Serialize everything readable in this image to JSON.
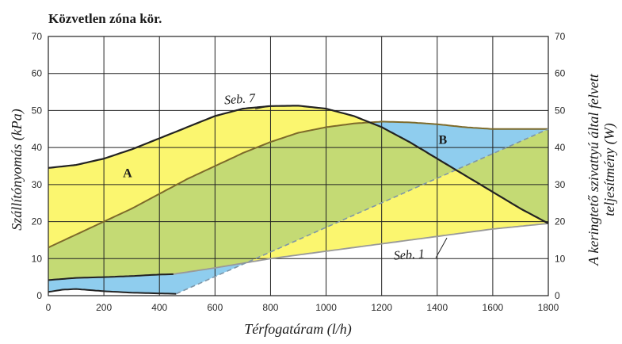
{
  "chart_data": {
    "type": "area",
    "title": "Közvetlen zóna kör.",
    "xlabel": "Térfogatáram (l/h)",
    "ylabel_left": "Szállítónyomás (kPa)",
    "ylabel_right_line1": "A keringtető szivattyú által felvett",
    "ylabel_right_line2": "teljesítmény (W)",
    "xlim": [
      0,
      1800
    ],
    "ylim": [
      0,
      70
    ],
    "y2lim": [
      0,
      70
    ],
    "grid": true,
    "x_ticks": [
      "0",
      "200",
      "400",
      "600",
      "800",
      "1000",
      "1200",
      "1400",
      "1600",
      "1800"
    ],
    "y_ticks": [
      "0",
      "10",
      "20",
      "30",
      "40",
      "50",
      "60",
      "70"
    ],
    "y2_ticks": [
      "0",
      "10",
      "20",
      "30",
      "40",
      "50",
      "60",
      "70"
    ],
    "colors": {
      "yellow": "#fbf66f",
      "green": "#c4da74",
      "blue": "#8fcdee",
      "curve_dark": "#222222",
      "curve_olive": "#7d6a2a",
      "curve_gray": "#999999",
      "dashed": "#7f96a8",
      "grid": "#222222"
    },
    "series": [
      {
        "name": "Seb. 7",
        "role": "pressure max",
        "x": [
          0,
          100,
          200,
          300,
          400,
          500,
          600,
          700,
          800,
          900,
          1000,
          1100,
          1200,
          1300,
          1400,
          1500,
          1600,
          1700,
          1800
        ],
        "values": [
          34.5,
          35.3,
          37,
          39.5,
          42.5,
          45.5,
          48.5,
          50.5,
          51.2,
          51.3,
          50.5,
          48.5,
          45.5,
          41.5,
          37,
          32.5,
          28,
          23.5,
          19.5
        ]
      },
      {
        "name": "",
        "role": "pressure min (boundary A)",
        "x": [
          0,
          100,
          200,
          300,
          400,
          450,
          600,
          800,
          1000,
          1200,
          1400,
          1600,
          1800
        ],
        "values": [
          4.2,
          4.8,
          5,
          5.3,
          5.7,
          5.8,
          7.5,
          10,
          12,
          14,
          16,
          18,
          19.5
        ]
      },
      {
        "name": "Seb. 1",
        "role": "pressure min",
        "x": [
          450,
          1800
        ],
        "values": [
          5.8,
          19.5
        ]
      },
      {
        "name": "",
        "role": "power max",
        "x": [
          0,
          100,
          200,
          300,
          400,
          500,
          600,
          700,
          800,
          900,
          1000,
          1100,
          1200,
          1300,
          1400,
          1500,
          1600,
          1700,
          1800
        ],
        "values": [
          13,
          16.5,
          20,
          23.5,
          27.5,
          31.5,
          35,
          38.5,
          41.5,
          44,
          45.5,
          46.5,
          47,
          46.8,
          46.3,
          45.5,
          45,
          45,
          45
        ]
      },
      {
        "name": "",
        "role": "power min",
        "x": [
          0,
          50,
          100,
          200,
          300,
          400,
          460,
          1800
        ],
        "values": [
          1,
          1.6,
          1.8,
          1.2,
          0.8,
          0.6,
          0.5,
          45
        ]
      }
    ],
    "annotations": [
      {
        "text": "Seb. 7",
        "x": 690,
        "y": 52
      },
      {
        "text": "Seb. 1",
        "x": 1300,
        "y": 10
      },
      {
        "text": "A",
        "x": 285,
        "y": 32
      },
      {
        "text": "B",
        "x": 1420,
        "y": 41
      }
    ]
  }
}
